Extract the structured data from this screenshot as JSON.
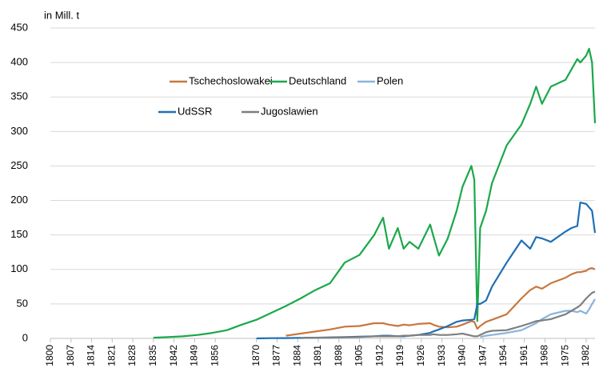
{
  "chart_data": {
    "type": "line",
    "y_axis_label": "in Mill. t",
    "x": [
      1835,
      1840,
      1845,
      1850,
      1855,
      1860,
      1865,
      1870,
      1875,
      1880,
      1885,
      1890,
      1895,
      1900,
      1905,
      1910,
      1913,
      1915,
      1918,
      1920,
      1922,
      1925,
      1929,
      1930,
      1932,
      1935,
      1938,
      1940,
      1943,
      1944,
      1945,
      1946,
      1948,
      1950,
      1955,
      1960,
      1963,
      1965,
      1967,
      1970,
      1975,
      1977,
      1979,
      1980,
      1982,
      1983,
      1984,
      1985
    ],
    "xlim": [
      1800,
      1985
    ],
    "xticks": [
      1800,
      1807,
      1814,
      1821,
      1828,
      1835,
      1842,
      1849,
      1856,
      1870,
      1877,
      1884,
      1891,
      1898,
      1905,
      1912,
      1919,
      1926,
      1933,
      1940,
      1947,
      1954,
      1961,
      1968,
      1975,
      1982
    ],
    "ylim": [
      0,
      450
    ],
    "yticks": [
      0,
      50,
      100,
      150,
      200,
      250,
      300,
      350,
      400,
      450
    ],
    "grid": true,
    "series": [
      {
        "name": "Tschechoslowakei",
        "color": "#c8773f",
        "values": [
          null,
          null,
          null,
          null,
          null,
          null,
          null,
          null,
          null,
          4,
          7,
          10,
          13,
          17,
          18,
          22,
          22,
          20,
          18,
          20,
          19,
          21,
          22,
          20,
          17,
          16,
          17,
          20,
          25,
          24,
          14,
          18,
          24,
          27,
          35,
          58,
          70,
          75,
          72,
          80,
          88,
          93,
          96,
          96,
          98,
          101,
          102,
          100
        ]
      },
      {
        "name": "Deutschland",
        "color": "#1aa84a",
        "values": [
          1,
          2,
          3,
          5,
          8,
          12,
          20,
          27,
          37,
          47,
          58,
          70,
          80,
          110,
          121,
          150,
          175,
          130,
          160,
          130,
          140,
          130,
          165,
          150,
          120,
          145,
          185,
          220,
          250,
          230,
          25,
          160,
          185,
          225,
          280,
          310,
          340,
          365,
          340,
          365,
          375,
          390,
          405,
          400,
          410,
          420,
          400,
          312
        ]
      },
      {
        "name": "Polen",
        "color": "#88b4dc",
        "values": [
          null,
          null,
          null,
          null,
          null,
          null,
          null,
          null,
          null,
          null,
          null,
          null,
          null,
          null,
          null,
          null,
          null,
          null,
          null,
          null,
          null,
          null,
          null,
          null,
          null,
          null,
          null,
          null,
          null,
          null,
          null,
          2,
          4,
          5,
          8,
          12,
          18,
          22,
          28,
          35,
          40,
          40,
          38,
          40,
          36,
          42,
          50,
          57
        ]
      },
      {
        "name": "UdSSR",
        "color": "#1f6fb4",
        "values": [
          null,
          null,
          null,
          null,
          null,
          null,
          null,
          0,
          0.3,
          0.5,
          0.8,
          1,
          1.5,
          2,
          2.5,
          3,
          4,
          4,
          3,
          3,
          4,
          5,
          8,
          10,
          13,
          18,
          24,
          26,
          27,
          28,
          50,
          50,
          55,
          75,
          110,
          142,
          130,
          147,
          145,
          140,
          155,
          160,
          163,
          197,
          195,
          190,
          185,
          153
        ]
      },
      {
        "name": "Jugoslawien",
        "color": "#7f7f7f",
        "values": [
          null,
          null,
          null,
          null,
          null,
          null,
          null,
          null,
          null,
          null,
          0.5,
          1,
          1,
          1.5,
          2,
          3,
          3,
          3,
          3,
          4,
          4,
          5,
          5,
          6,
          5,
          5,
          6,
          7,
          4,
          3,
          3,
          5,
          9,
          11,
          12,
          18,
          22,
          25,
          26,
          28,
          35,
          40,
          45,
          48,
          58,
          62,
          66,
          68
        ]
      }
    ]
  }
}
